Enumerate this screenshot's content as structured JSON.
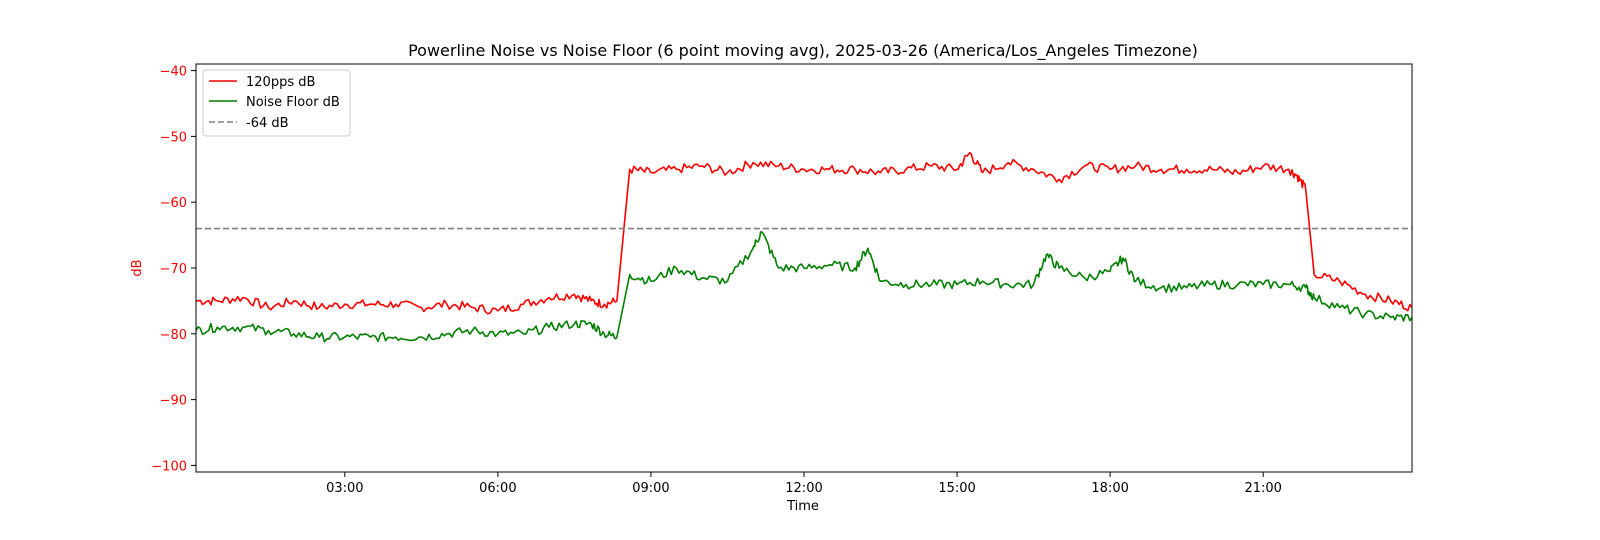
{
  "chart_data": {
    "type": "line",
    "title": "Powerline Noise vs Noise Floor (6 point moving avg), 2025-03-26 (America/Los_Angeles Timezone)",
    "xlabel": "Time",
    "ylabel": "dB",
    "xlim": [
      "00:05",
      "23:55"
    ],
    "ylim": [
      -101,
      -39
    ],
    "x_ticks": [
      "03:00",
      "06:00",
      "09:00",
      "12:00",
      "15:00",
      "18:00",
      "21:00"
    ],
    "y_ticks": [
      -40,
      -50,
      -60,
      -70,
      -80,
      -90,
      -100
    ],
    "y_tick_labels": [
      "−40",
      "−50",
      "−60",
      "−70",
      "−80",
      "−90",
      "−100"
    ],
    "grid": false,
    "legend_position": "top-left",
    "reference_line": {
      "name": "-64 dB",
      "value": -64,
      "color": "#808080",
      "style": "dashed"
    },
    "series": [
      {
        "name": "120pps dB",
        "color": "#ff0000",
        "x": [
          "00:05",
          "00:30",
          "01:00",
          "01:30",
          "02:00",
          "02:30",
          "03:00",
          "03:30",
          "04:00",
          "04:30",
          "05:00",
          "05:30",
          "06:00",
          "06:30",
          "07:00",
          "07:30",
          "07:50",
          "08:05",
          "08:20",
          "08:35",
          "09:00",
          "09:30",
          "10:00",
          "10:30",
          "11:00",
          "11:30",
          "12:00",
          "12:30",
          "13:00",
          "13:30",
          "14:00",
          "14:30",
          "15:00",
          "15:15",
          "15:30",
          "16:00",
          "16:30",
          "17:00",
          "17:30",
          "18:00",
          "18:30",
          "19:00",
          "19:30",
          "20:00",
          "20:30",
          "21:00",
          "21:30",
          "21:40",
          "21:50",
          "22:00",
          "22:30",
          "23:00",
          "23:30",
          "23:55"
        ],
        "values": [
          -75,
          -75,
          -74.5,
          -76,
          -75,
          -76,
          -75.5,
          -75.5,
          -75.5,
          -76,
          -75.5,
          -76,
          -76.5,
          -75.5,
          -74.5,
          -74,
          -75,
          -75.5,
          -75,
          -55,
          -55.5,
          -55,
          -54.5,
          -55.5,
          -54,
          -54.5,
          -55,
          -55,
          -55,
          -55.5,
          -55,
          -54.5,
          -55,
          -52.5,
          -55.5,
          -54,
          -55,
          -56.5,
          -54.5,
          -55,
          -54.5,
          -55,
          -55,
          -55,
          -55.5,
          -54.5,
          -55,
          -56,
          -58,
          -71,
          -72,
          -74,
          -75,
          -76
        ]
      },
      {
        "name": "Noise Floor dB",
        "color": "#008000",
        "x": [
          "00:05",
          "00:30",
          "01:00",
          "01:30",
          "02:00",
          "02:30",
          "03:00",
          "03:30",
          "04:00",
          "04:30",
          "05:00",
          "05:30",
          "06:00",
          "06:30",
          "07:00",
          "07:30",
          "07:50",
          "08:05",
          "08:20",
          "08:35",
          "09:00",
          "09:30",
          "10:00",
          "10:30",
          "11:00",
          "11:10",
          "11:30",
          "12:00",
          "12:30",
          "13:00",
          "13:15",
          "13:30",
          "14:00",
          "14:30",
          "15:00",
          "15:30",
          "16:00",
          "16:30",
          "16:45",
          "17:00",
          "17:30",
          "18:00",
          "18:15",
          "18:30",
          "19:00",
          "19:30",
          "20:00",
          "20:30",
          "21:00",
          "21:30",
          "21:50",
          "22:00",
          "22:30",
          "23:00",
          "23:30",
          "23:55"
        ],
        "values": [
          -79.5,
          -79,
          -79,
          -79.5,
          -80,
          -80.5,
          -80.5,
          -80.5,
          -80.5,
          -80.5,
          -80,
          -79.5,
          -80,
          -80,
          -79,
          -78.5,
          -78.5,
          -80,
          -80.5,
          -71,
          -72,
          -70,
          -71.5,
          -72,
          -67,
          -64.5,
          -70,
          -70,
          -69.5,
          -70,
          -67,
          -72,
          -72.5,
          -72.5,
          -72.5,
          -72,
          -72.5,
          -72.5,
          -68,
          -70,
          -71.5,
          -70.5,
          -68.5,
          -72,
          -73,
          -73,
          -72.5,
          -72.5,
          -72.5,
          -72.5,
          -73,
          -74.5,
          -76,
          -77,
          -77.5,
          -77.5
        ]
      }
    ]
  }
}
